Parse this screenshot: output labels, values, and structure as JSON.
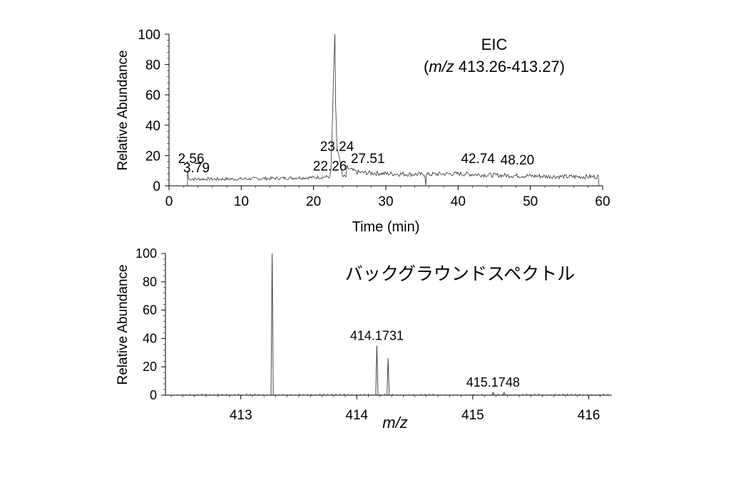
{
  "chart_data": [
    {
      "type": "line",
      "title": "EIC",
      "subtitle": {
        "open": "(",
        "mz": "m/z",
        "range": "413.26-413.27)"
      },
      "xlabel": "Time (min)",
      "ylabel": "Relative Abundance",
      "xlim": [
        0,
        60
      ],
      "ylim": [
        0,
        100
      ],
      "xticks": [
        0,
        10,
        20,
        30,
        40,
        50,
        60
      ],
      "yticks": [
        0,
        20,
        40,
        60,
        80,
        100
      ],
      "start_time": 2.56,
      "end_time": 59.5,
      "baseline_levels": [
        [
          2.56,
          4.5
        ],
        [
          10,
          4.5
        ],
        [
          20,
          5.5
        ],
        [
          22.26,
          6
        ]
      ],
      "tail_levels": [
        [
          24.5,
          12
        ],
        [
          26,
          9
        ],
        [
          30,
          8
        ],
        [
          35,
          7.5
        ],
        [
          40,
          8
        ],
        [
          45,
          7
        ],
        [
          50,
          6.5
        ],
        [
          55,
          6
        ],
        [
          59.5,
          6
        ]
      ],
      "features": [
        {
          "t": 2.56,
          "y": 10
        },
        {
          "t": 22.6,
          "y": 40
        },
        {
          "t": 22.95,
          "y": 100
        },
        {
          "t": 23.24,
          "y": 25
        },
        {
          "t": 35.5,
          "y": 0
        }
      ],
      "peak_labels": [
        {
          "t": 2.56,
          "label": "2.56",
          "y": 15
        },
        {
          "t": 3.79,
          "label": "3.79",
          "y": 9
        },
        {
          "t": 22.26,
          "label": "22.26",
          "y": 10
        },
        {
          "t": 23.24,
          "label": "23.24",
          "y": 23
        },
        {
          "t": 27.51,
          "label": "27.51",
          "y": 15
        },
        {
          "t": 42.74,
          "label": "42.74",
          "y": 15
        },
        {
          "t": 48.2,
          "label": "48.20",
          "y": 14
        }
      ]
    },
    {
      "type": "bar",
      "title": "バックグラウンドスペクトル",
      "xlabel": "m/z",
      "ylabel": "Relative Abundance",
      "xlim": [
        412.35,
        416.2
      ],
      "ylim": [
        0,
        100
      ],
      "xticks": [
        413,
        414,
        415,
        416
      ],
      "yticks": [
        0,
        20,
        40,
        60,
        80,
        100
      ],
      "peaks": [
        {
          "mz": 413.27,
          "y": 100
        },
        {
          "mz": 414.1731,
          "y": 35,
          "label": "414.1731"
        },
        {
          "mz": 414.27,
          "y": 26
        },
        {
          "mz": 415.1748,
          "y": 2,
          "label": "415.1748"
        },
        {
          "mz": 415.27,
          "y": 2
        }
      ]
    }
  ]
}
